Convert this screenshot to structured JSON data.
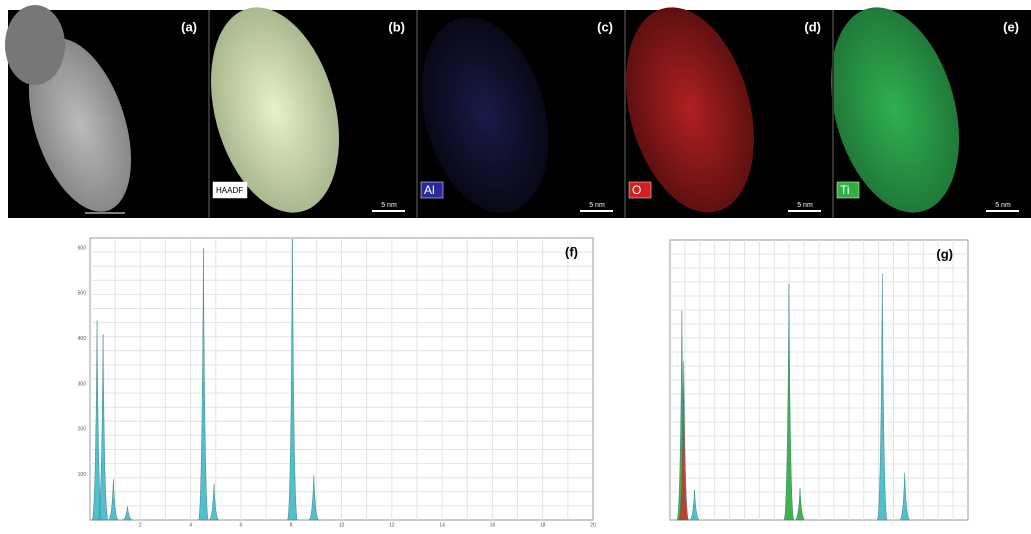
{
  "panels": [
    {
      "label": "(a)"
    },
    {
      "label": "(b)",
      "overlay": "HAADF",
      "scale": "5 nm"
    },
    {
      "label": "(c)",
      "overlay": "Al",
      "scale": "5 nm"
    },
    {
      "label": "(d)",
      "overlay": "O",
      "scale": "5 nm"
    },
    {
      "label": "(e)",
      "overlay": "Ti",
      "scale": "5 nm"
    }
  ],
  "chart_data": [
    {
      "type": "spectrum",
      "label": "(f)",
      "xlim": [
        0,
        20
      ],
      "ylim": [
        0,
        600
      ],
      "xticks": [
        2,
        4,
        6,
        8,
        10,
        12,
        14,
        16,
        18,
        20
      ],
      "yticks": [
        100,
        200,
        300,
        400,
        500,
        600
      ],
      "grid": true,
      "series": [
        {
          "color": "#3fb8c8",
          "x": [
            0.28,
            0.52,
            0.93,
            1.49,
            4.51,
            4.93,
            8.05,
            8.9
          ],
          "values": [
            440,
            410,
            90,
            30,
            600,
            80,
            620,
            100
          ]
        }
      ]
    },
    {
      "type": "spectrum",
      "label": "(g)",
      "xlim": [
        0,
        11.3
      ],
      "ylim": [
        0,
        800
      ],
      "grid": true,
      "series": [
        {
          "color": "#2eaa3c",
          "x": [
            0.45,
            4.51,
            4.93
          ],
          "values": [
            620,
            700,
            95
          ]
        },
        {
          "color": "#c0392b",
          "x": [
            0.52
          ],
          "values": [
            470
          ]
        },
        {
          "color": "#3fb8c8",
          "x": [
            0.93,
            8.05,
            8.9
          ],
          "values": [
            90,
            730,
            140
          ]
        }
      ]
    }
  ]
}
